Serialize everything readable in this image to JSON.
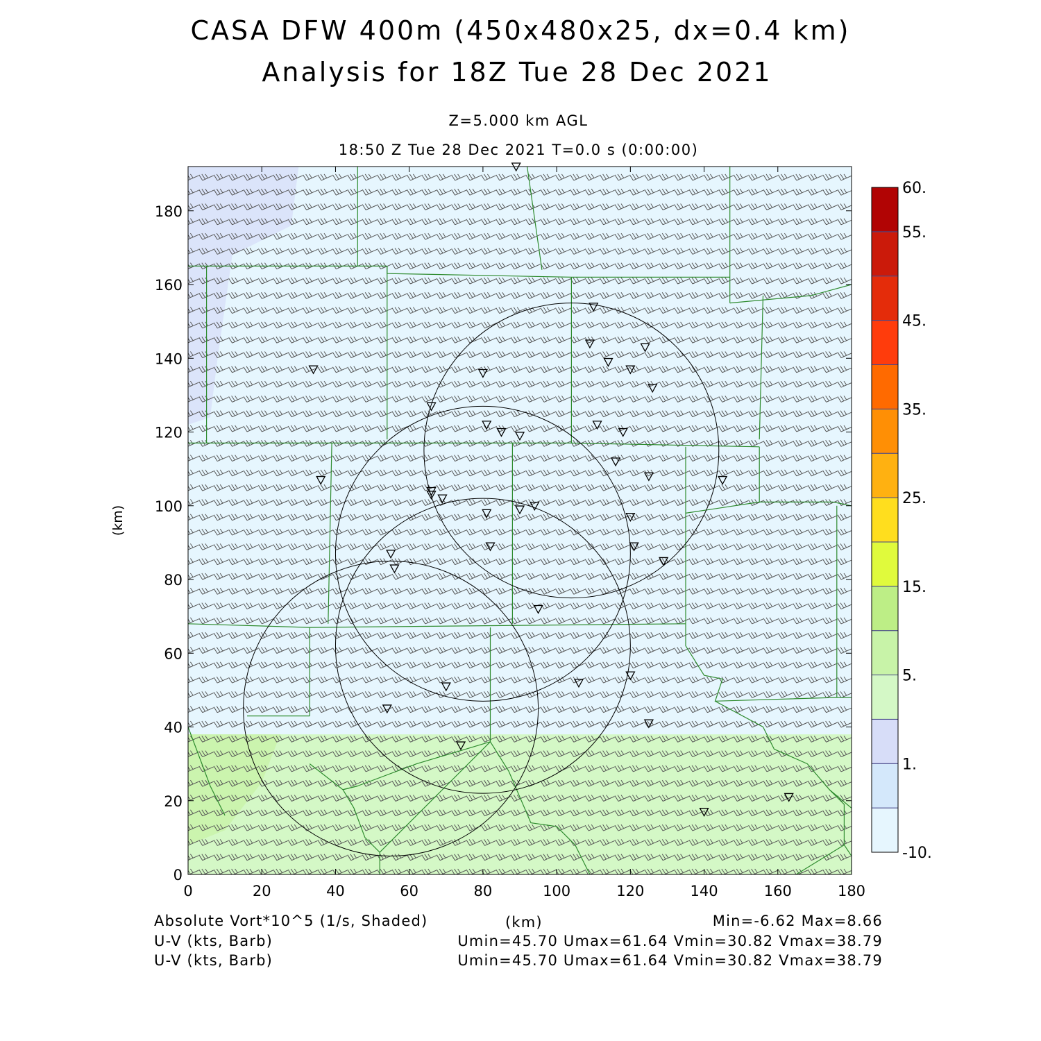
{
  "title": {
    "line1": "CASA DFW 400m (450x480x25, dx=0.4 km)",
    "line2": "Analysis for 18Z Tue 28 Dec 2021"
  },
  "subtitle": {
    "level": "Z=5.000 km AGL",
    "time": "18:50 Z Tue 28 Dec 2021    T=0.0 s (0:00:00)"
  },
  "axes": {
    "xlabel": "(km)",
    "ylabel": "(km)",
    "xlim": [
      0,
      180
    ],
    "ylim": [
      0,
      192
    ],
    "xticks": [
      0,
      20,
      40,
      60,
      80,
      100,
      120,
      140,
      160,
      180
    ],
    "yticks": [
      0,
      20,
      40,
      60,
      80,
      100,
      120,
      140,
      160,
      180
    ]
  },
  "colorbar": {
    "labels": [
      "-10.",
      "1.",
      "5.",
      "15.",
      "25.",
      "35.",
      "45.",
      "55.",
      "60."
    ],
    "colors": [
      "#e6f6fe",
      "#d4e8fb",
      "#d7ddf8",
      "#d4f8c6",
      "#c8f3a8",
      "#bdee86",
      "#e0fa3c",
      "#ffde1e",
      "#ffb111",
      "#ff8f05",
      "#ff6a00",
      "#ff3c0c",
      "#e42c0a",
      "#cb1a0a",
      "#b10404"
    ]
  },
  "footer": {
    "field": "Absolute Vort*10^5 (1/s, Shaded)",
    "xunits": "(km)",
    "minmax": "Min=-6.62 Max=8.66",
    "barb1": "U-V (kts, Barb)",
    "barb1_stats": "Umin=45.70 Umax=61.64 Vmin=30.82 Vmax=38.79",
    "barb2": "U-V (kts, Barb)",
    "barb2_stats": "Umin=45.70 Umax=61.64 Vmin=30.82 Vmax=38.79"
  },
  "map_data": {
    "shading": {
      "base_color": "#e6f6fe",
      "north_west_color": "#d7ddf8",
      "south_band_color": "#d4f8c6",
      "south_band_top_km": 38
    },
    "radar_rings": [
      {
        "cx": 104,
        "cy": 115,
        "r": 40
      },
      {
        "cx": 80,
        "cy": 87,
        "r": 40
      },
      {
        "cx": 80,
        "cy": 62,
        "r": 40
      },
      {
        "cx": 55,
        "cy": 45,
        "r": 40
      }
    ],
    "stations": [
      [
        89,
        192
      ],
      [
        34,
        137
      ],
      [
        80,
        136
      ],
      [
        66,
        127
      ],
      [
        110,
        154
      ],
      [
        109,
        144
      ],
      [
        124,
        143
      ],
      [
        114,
        139
      ],
      [
        120,
        137
      ],
      [
        126,
        132
      ],
      [
        81,
        122
      ],
      [
        85,
        120
      ],
      [
        90,
        119
      ],
      [
        111,
        122
      ],
      [
        118,
        120
      ],
      [
        36,
        107
      ],
      [
        66,
        104
      ],
      [
        66,
        103
      ],
      [
        69,
        102
      ],
      [
        116,
        112
      ],
      [
        125,
        108
      ],
      [
        145,
        107
      ],
      [
        81,
        98
      ],
      [
        90,
        99
      ],
      [
        94,
        100
      ],
      [
        120,
        97
      ],
      [
        82,
        89
      ],
      [
        121,
        89
      ],
      [
        129,
        85
      ],
      [
        55,
        87
      ],
      [
        56,
        83
      ],
      [
        95,
        72
      ],
      [
        70,
        51
      ],
      [
        106,
        52
      ],
      [
        120,
        54
      ],
      [
        54,
        45
      ],
      [
        125,
        41
      ],
      [
        74,
        35
      ],
      [
        140,
        17
      ],
      [
        163,
        21
      ]
    ],
    "boundaries": [
      [
        [
          46,
          192
        ],
        [
          46,
          165
        ]
      ],
      [
        [
          92,
          192
        ],
        [
          96,
          164
        ],
        [
          96,
          164
        ]
      ],
      [
        [
          147,
          192
        ],
        [
          147,
          155
        ]
      ],
      [
        [
          0,
          165
        ],
        [
          54,
          165
        ]
      ],
      [
        [
          54,
          165
        ],
        [
          54,
          163
        ],
        [
          104,
          162
        ]
      ],
      [
        [
          104,
          162
        ],
        [
          147,
          162
        ]
      ],
      [
        [
          147,
          155
        ],
        [
          169,
          157
        ],
        [
          180,
          160
        ]
      ],
      [
        [
          156,
          157
        ],
        [
          155,
          118
        ]
      ],
      [
        [
          104,
          162
        ],
        [
          104,
          117
        ]
      ],
      [
        [
          54,
          165
        ],
        [
          54,
          118
        ]
      ],
      [
        [
          5,
          165
        ],
        [
          5,
          117
        ]
      ],
      [
        [
          0,
          117
        ],
        [
          39,
          117
        ]
      ],
      [
        [
          39,
          117
        ],
        [
          104,
          117
        ],
        [
          155,
          116
        ]
      ],
      [
        [
          155,
          116
        ],
        [
          155,
          101
        ],
        [
          175,
          101
        ]
      ],
      [
        [
          175,
          101
        ],
        [
          180,
          100
        ]
      ],
      [
        [
          39,
          117
        ],
        [
          38,
          68
        ]
      ],
      [
        [
          88,
          117
        ],
        [
          88,
          68
        ]
      ],
      [
        [
          135,
          116
        ],
        [
          135,
          68
        ]
      ],
      [
        [
          155,
          101
        ],
        [
          135,
          98
        ]
      ],
      [
        [
          176,
          100
        ],
        [
          176,
          48
        ]
      ],
      [
        [
          0,
          68
        ],
        [
          33,
          67
        ]
      ],
      [
        [
          33,
          67
        ],
        [
          135,
          68
        ]
      ],
      [
        [
          33,
          67
        ],
        [
          33,
          43
        ]
      ],
      [
        [
          16,
          43
        ],
        [
          33,
          43
        ]
      ],
      [
        [
          82,
          67
        ],
        [
          82,
          36
        ]
      ],
      [
        [
          135,
          68
        ],
        [
          135,
          62
        ],
        [
          140,
          54
        ],
        [
          145,
          53
        ],
        [
          143,
          47
        ],
        [
          176,
          48
        ]
      ],
      [
        [
          176,
          48
        ],
        [
          180,
          48
        ]
      ],
      [
        [
          143,
          47
        ],
        [
          156,
          40
        ],
        [
          159,
          34
        ],
        [
          168,
          30
        ],
        [
          174,
          23
        ],
        [
          180,
          18
        ]
      ],
      [
        [
          174,
          23
        ],
        [
          178,
          19
        ],
        [
          178,
          8
        ],
        [
          180,
          5
        ],
        [
          180,
          0
        ]
      ],
      [
        [
          0,
          40
        ],
        [
          6,
          24
        ],
        [
          10,
          16
        ]
      ],
      [
        [
          33,
          30
        ],
        [
          42,
          23
        ],
        [
          46,
          24
        ]
      ],
      [
        [
          46,
          24
        ],
        [
          42,
          23
        ],
        [
          45,
          18
        ],
        [
          48,
          10
        ],
        [
          52,
          6
        ],
        [
          52,
          0
        ]
      ],
      [
        [
          52,
          6
        ],
        [
          82,
          36
        ]
      ],
      [
        [
          82,
          36
        ],
        [
          87,
          28
        ],
        [
          93,
          14
        ],
        [
          100,
          13
        ],
        [
          105,
          8
        ],
        [
          109,
          0
        ]
      ],
      [
        [
          46,
          24
        ],
        [
          62,
          30
        ],
        [
          82,
          36
        ]
      ],
      [
        [
          165,
          0
        ],
        [
          178,
          8
        ]
      ]
    ]
  }
}
